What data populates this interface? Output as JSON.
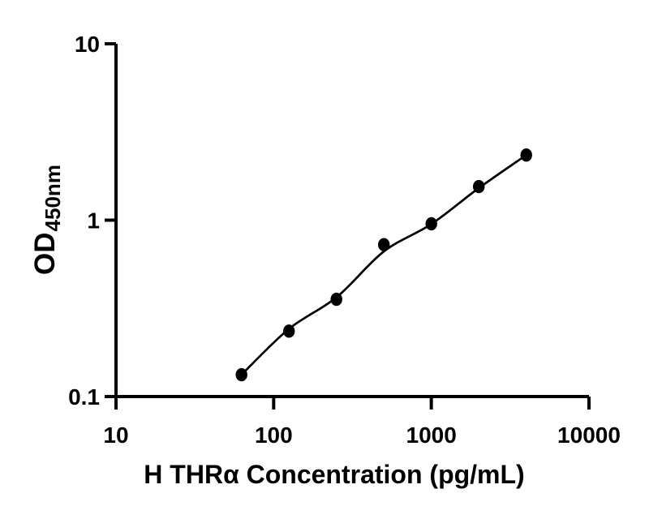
{
  "chart_data": {
    "type": "scatter",
    "title": "",
    "xlabel": "H THRα Concentration (pg/mL)",
    "ylabel": "OD",
    "ylabel_subscript": "450nm",
    "x_scale": "log",
    "y_scale": "log",
    "xlim": [
      10,
      10000
    ],
    "ylim": [
      0.1,
      10
    ],
    "grid": false,
    "legend": "none",
    "x_ticks": [
      {
        "value": 10,
        "label": "10"
      },
      {
        "value": 100,
        "label": "100"
      },
      {
        "value": 1000,
        "label": "1000"
      },
      {
        "value": 10000,
        "label": "10000"
      }
    ],
    "y_ticks": [
      {
        "value": 0.1,
        "label": "0.1"
      },
      {
        "value": 1,
        "label": "1"
      },
      {
        "value": 10,
        "label": "10"
      }
    ],
    "series": [
      {
        "name": "standard-curve",
        "marker": "filled-circle",
        "points": [
          {
            "x": 62.5,
            "y": 0.133
          },
          {
            "x": 125,
            "y": 0.235
          },
          {
            "x": 250,
            "y": 0.356
          },
          {
            "x": 500,
            "y": 0.726
          },
          {
            "x": 1000,
            "y": 0.953
          },
          {
            "x": 2000,
            "y": 1.55
          },
          {
            "x": 4000,
            "y": 2.34
          }
        ]
      }
    ],
    "fit_curve": [
      {
        "x": 62.5,
        "y": 0.133
      },
      {
        "x": 125,
        "y": 0.242
      },
      {
        "x": 250,
        "y": 0.365
      },
      {
        "x": 500,
        "y": 0.665
      },
      {
        "x": 1000,
        "y": 0.95
      },
      {
        "x": 2000,
        "y": 1.52
      },
      {
        "x": 4000,
        "y": 2.34
      }
    ],
    "colors": {
      "foreground": "#000000",
      "background": "#ffffff"
    }
  }
}
